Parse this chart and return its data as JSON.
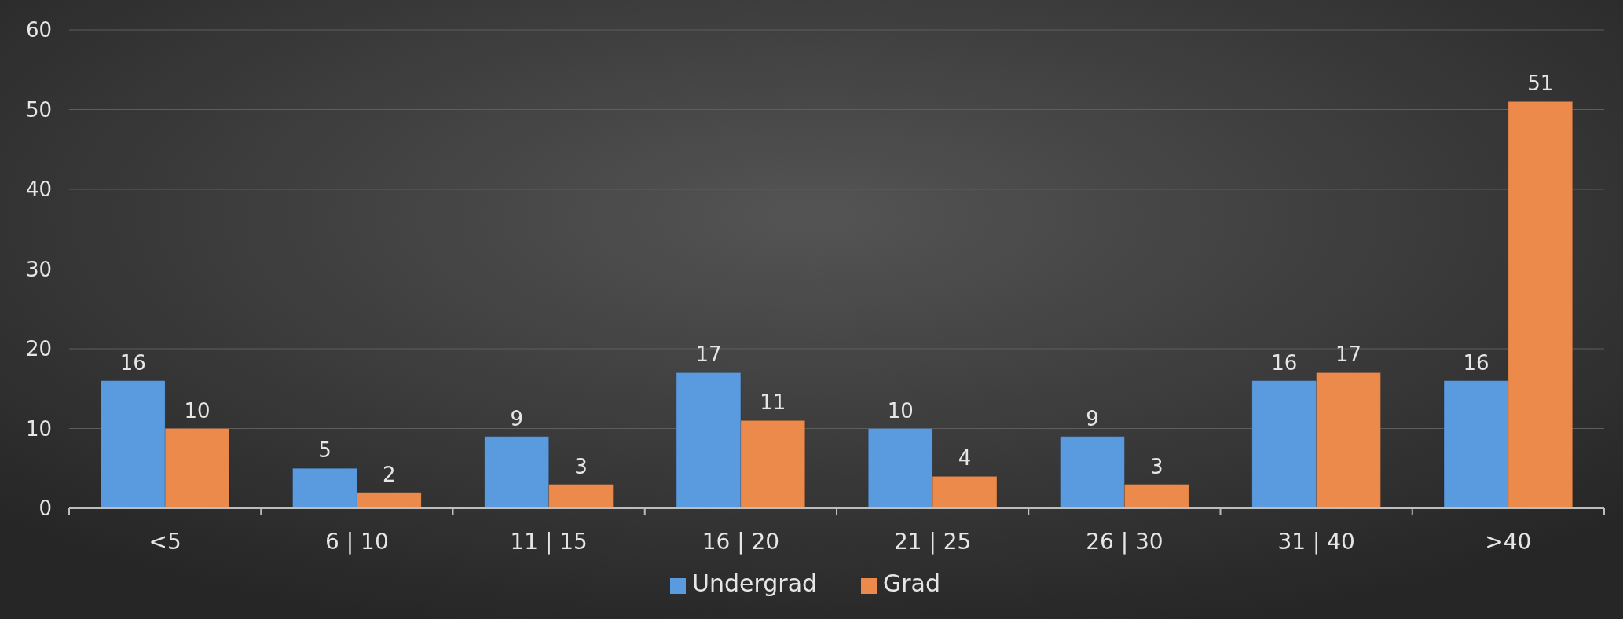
{
  "chart_data": {
    "type": "bar",
    "categories": [
      "<5",
      "6 | 10",
      "11 | 15",
      "16 | 20",
      "21 | 25",
      "26 | 30",
      "31 | 40",
      ">40"
    ],
    "series": [
      {
        "name": "Undergrad",
        "color": "#5a9be0",
        "values": [
          16,
          5,
          9,
          17,
          10,
          9,
          16,
          16
        ]
      },
      {
        "name": "Grad",
        "color": "#ec8a4c",
        "values": [
          10,
          2,
          3,
          11,
          4,
          3,
          17,
          51
        ]
      }
    ],
    "ylim": [
      0,
      60
    ],
    "yticks": [
      0,
      10,
      20,
      30,
      40,
      50,
      60
    ],
    "grid": "y",
    "legend": "bottom",
    "data_labels": true
  }
}
